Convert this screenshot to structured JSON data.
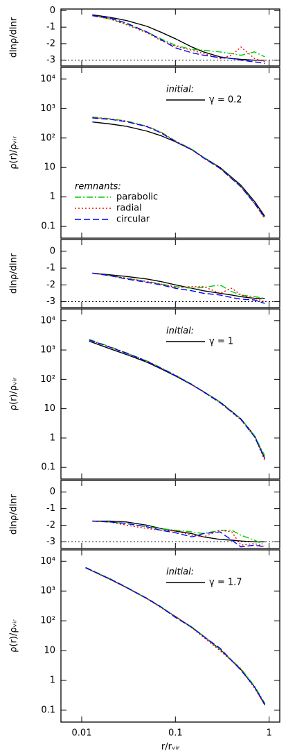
{
  "chart_data": [
    {
      "type": "line",
      "ylabel": "dlnρ/dlnr",
      "xscale": "log",
      "xlim": [
        0.006,
        1.3
      ],
      "xticks": [
        0.01,
        0.1,
        1
      ],
      "xticklabels": false,
      "ylim": [
        -3.35,
        0.1
      ],
      "yticks": [
        0,
        -1,
        -2,
        -3
      ],
      "hline": -3,
      "x": [
        0.013,
        0.02,
        0.03,
        0.05,
        0.07,
        0.1,
        0.15,
        0.2,
        0.3,
        0.4,
        0.5,
        0.7,
        0.9
      ],
      "series": [
        {
          "color": "#000000",
          "dash": "solid",
          "values": [
            -0.25,
            -0.4,
            -0.6,
            -0.95,
            -1.3,
            -1.7,
            -2.2,
            -2.5,
            -2.8,
            -2.9,
            -2.95,
            -3.0,
            -3.0
          ]
        },
        {
          "color": "#00cc00",
          "dash": "dashdot",
          "values": [
            -0.3,
            -0.5,
            -0.8,
            -1.3,
            -1.7,
            -2.1,
            -2.35,
            -2.4,
            -2.5,
            -2.6,
            -2.7,
            -2.5,
            -2.8
          ]
        },
        {
          "color": "#ff0000",
          "dash": "dotted",
          "values": [
            -0.3,
            -0.5,
            -0.85,
            -1.35,
            -1.8,
            -2.15,
            -2.4,
            -2.6,
            -2.9,
            -2.7,
            -2.2,
            -2.9,
            -3.1
          ]
        },
        {
          "color": "#0000ff",
          "dash": "dashed",
          "values": [
            -0.3,
            -0.45,
            -0.75,
            -1.3,
            -1.75,
            -2.25,
            -2.55,
            -2.7,
            -2.85,
            -2.9,
            -3.0,
            -3.1,
            -3.2
          ]
        }
      ]
    },
    {
      "type": "line",
      "ylabel": "ρ(r)/ρᵥᵢᵣ",
      "xscale": "log",
      "yscale": "log",
      "xlim": [
        0.006,
        1.3
      ],
      "xticks": [
        0.01,
        0.1,
        1
      ],
      "xticklabels": false,
      "ylim": [
        0.04,
        25000
      ],
      "yticks": [
        {
          "value": 10000,
          "label": "10⁴"
        },
        {
          "value": 1000,
          "label": "10³"
        },
        {
          "value": 100,
          "label": "10²"
        },
        10,
        1,
        0.1
      ],
      "annotation": "initial:",
      "legend_title": "remnants:",
      "x": [
        0.013,
        0.02,
        0.03,
        0.05,
        0.07,
        0.1,
        0.15,
        0.2,
        0.3,
        0.5,
        0.7,
        0.9
      ],
      "series": [
        {
          "name": "γ = 0.2",
          "color": "#000000",
          "dash": "solid",
          "values": [
            350,
            300,
            250,
            170,
            120,
            75,
            40,
            22,
            10,
            2.5,
            0.7,
            0.22
          ]
        },
        {
          "name": "parabolic",
          "color": "#00cc00",
          "dash": "dashdot",
          "values": [
            520,
            450,
            380,
            250,
            160,
            80,
            42,
            22,
            9.5,
            2.3,
            0.6,
            0.2
          ]
        },
        {
          "name": "radial",
          "color": "#ff0000",
          "dash": "dotted",
          "values": [
            500,
            440,
            370,
            245,
            155,
            78,
            41,
            21,
            9.5,
            2.2,
            0.6,
            0.18
          ]
        },
        {
          "name": "circular",
          "color": "#0000ff",
          "dash": "dashed",
          "values": [
            480,
            430,
            360,
            240,
            150,
            75,
            40,
            21,
            9.3,
            2.2,
            0.6,
            0.2
          ]
        }
      ]
    },
    {
      "type": "line",
      "ylabel": "dlnρ/dlnr",
      "xscale": "log",
      "xlim": [
        0.006,
        1.3
      ],
      "xticks": [
        0.01,
        0.1,
        1
      ],
      "xticklabels": false,
      "ylim": [
        -3.35,
        0.7
      ],
      "yticks": [
        0,
        -1,
        -2,
        -3
      ],
      "hline": -3,
      "x": [
        0.013,
        0.02,
        0.03,
        0.05,
        0.07,
        0.1,
        0.15,
        0.2,
        0.3,
        0.4,
        0.5,
        0.7,
        0.9
      ],
      "series": [
        {
          "color": "#000000",
          "dash": "solid",
          "values": [
            -1.3,
            -1.4,
            -1.5,
            -1.65,
            -1.8,
            -2.0,
            -2.2,
            -2.35,
            -2.5,
            -2.6,
            -2.7,
            -2.8,
            -2.8
          ]
        },
        {
          "color": "#00cc00",
          "dash": "dashdot",
          "values": [
            -1.3,
            -1.45,
            -1.6,
            -1.8,
            -1.95,
            -2.1,
            -2.2,
            -2.15,
            -2.0,
            -2.4,
            -2.6,
            -2.7,
            -2.8
          ]
        },
        {
          "color": "#ff0000",
          "dash": "dotted",
          "values": [
            -1.3,
            -1.45,
            -1.6,
            -1.8,
            -1.95,
            -2.15,
            -2.1,
            -2.1,
            -2.5,
            -2.2,
            -2.6,
            -2.8,
            -3.0
          ]
        },
        {
          "color": "#0000ff",
          "dash": "dashed",
          "values": [
            -1.3,
            -1.45,
            -1.65,
            -1.85,
            -2.0,
            -2.2,
            -2.35,
            -2.5,
            -2.6,
            -2.75,
            -2.85,
            -2.9,
            -3.1
          ]
        }
      ]
    },
    {
      "type": "line",
      "ylabel": "ρ(r)/ρᵥᵢᵣ",
      "xscale": "log",
      "yscale": "log",
      "xlim": [
        0.006,
        1.3
      ],
      "xticks": [
        0.01,
        0.1,
        1
      ],
      "xticklabels": false,
      "ylim": [
        0.04,
        25000
      ],
      "yticks": [
        {
          "value": 10000,
          "label": "10⁴"
        },
        {
          "value": 1000,
          "label": "10³"
        },
        {
          "value": 100,
          "label": "10²"
        },
        10,
        1,
        0.1
      ],
      "annotation": "initial:",
      "x": [
        0.012,
        0.02,
        0.03,
        0.05,
        0.07,
        0.1,
        0.15,
        0.2,
        0.3,
        0.5,
        0.7,
        0.9
      ],
      "series": [
        {
          "name": "γ = 1",
          "color": "#000000",
          "dash": "solid",
          "values": [
            2000,
            1100,
            700,
            380,
            230,
            130,
            65,
            38,
            17,
            4.5,
            1.2,
            0.2
          ]
        },
        {
          "color": "#00cc00",
          "dash": "dashdot",
          "values": [
            2300,
            1300,
            800,
            420,
            250,
            140,
            68,
            38,
            17,
            4.5,
            1.2,
            0.25
          ]
        },
        {
          "color": "#ff0000",
          "dash": "dotted",
          "values": [
            2200,
            1250,
            780,
            410,
            240,
            135,
            66,
            37,
            16,
            4.2,
            1.1,
            0.17
          ]
        },
        {
          "color": "#0000ff",
          "dash": "dashed",
          "values": [
            2200,
            1250,
            780,
            410,
            240,
            135,
            66,
            37,
            16,
            4.3,
            1.1,
            0.2
          ]
        }
      ]
    },
    {
      "type": "line",
      "ylabel": "dlnρ/dlnr",
      "xscale": "log",
      "xlim": [
        0.006,
        1.3
      ],
      "xticks": [
        0.01,
        0.1,
        1
      ],
      "xticklabels": false,
      "ylim": [
        -3.4,
        0.7
      ],
      "yticks": [
        0,
        -1,
        -2,
        -3
      ],
      "hline": -3,
      "x": [
        0.013,
        0.02,
        0.03,
        0.05,
        0.07,
        0.1,
        0.15,
        0.2,
        0.3,
        0.4,
        0.5,
        0.7,
        0.9
      ],
      "series": [
        {
          "color": "#000000",
          "dash": "solid",
          "values": [
            -1.75,
            -1.75,
            -1.8,
            -2.0,
            -2.2,
            -2.35,
            -2.5,
            -2.7,
            -2.85,
            -2.9,
            -2.95,
            -3.0,
            -3.0
          ]
        },
        {
          "color": "#00cc00",
          "dash": "dashdot",
          "values": [
            -1.75,
            -1.8,
            -1.9,
            -2.1,
            -2.2,
            -2.3,
            -2.4,
            -2.5,
            -2.3,
            -2.3,
            -2.6,
            -2.9,
            -3.2
          ]
        },
        {
          "color": "#ff0000",
          "dash": "dotted",
          "values": [
            -1.75,
            -1.8,
            -2.0,
            -2.2,
            -2.3,
            -2.35,
            -2.6,
            -2.7,
            -2.3,
            -2.4,
            -3.2,
            -3.1,
            -3.3
          ]
        },
        {
          "color": "#0000ff",
          "dash": "dashed",
          "values": [
            -1.75,
            -1.8,
            -1.9,
            -2.1,
            -2.3,
            -2.45,
            -2.7,
            -2.5,
            -2.4,
            -2.9,
            -3.3,
            -3.2,
            -3.3
          ]
        }
      ]
    },
    {
      "type": "line",
      "ylabel": "ρ(r)/ρᵥᵢᵣ",
      "xlabel": "r/rᵥᵢᵣ",
      "xscale": "log",
      "yscale": "log",
      "xlim": [
        0.006,
        1.3
      ],
      "xticks": [
        0.01,
        0.1,
        1
      ],
      "xticklabels": true,
      "ylim": [
        0.04,
        24000
      ],
      "yticks": [
        {
          "value": 10000,
          "label": "10⁴"
        },
        {
          "value": 1000,
          "label": "10³"
        },
        {
          "value": 100,
          "label": "10²"
        },
        10,
        1,
        0.1
      ],
      "annotation": "initial:",
      "x": [
        0.011,
        0.02,
        0.03,
        0.05,
        0.07,
        0.1,
        0.15,
        0.2,
        0.3,
        0.5,
        0.7,
        0.9
      ],
      "series": [
        {
          "name": "γ = 1.7",
          "color": "#000000",
          "dash": "solid",
          "values": [
            6000,
            2500,
            1300,
            550,
            290,
            140,
            60,
            30,
            11,
            2.3,
            0.6,
            0.15
          ]
        },
        {
          "color": "#00cc00",
          "dash": "dashdot",
          "values": [
            6200,
            2600,
            1350,
            560,
            300,
            135,
            62,
            31,
            11,
            2.5,
            0.65,
            0.17
          ]
        },
        {
          "color": "#ff0000",
          "dash": "dotted",
          "values": [
            6000,
            2500,
            1300,
            540,
            280,
            140,
            58,
            28,
            10,
            2.4,
            0.55,
            0.15
          ]
        },
        {
          "color": "#0000ff",
          "dash": "dashed",
          "values": [
            6100,
            2550,
            1320,
            560,
            290,
            130,
            60,
            30,
            12,
            2.2,
            0.6,
            0.16
          ]
        }
      ]
    }
  ]
}
